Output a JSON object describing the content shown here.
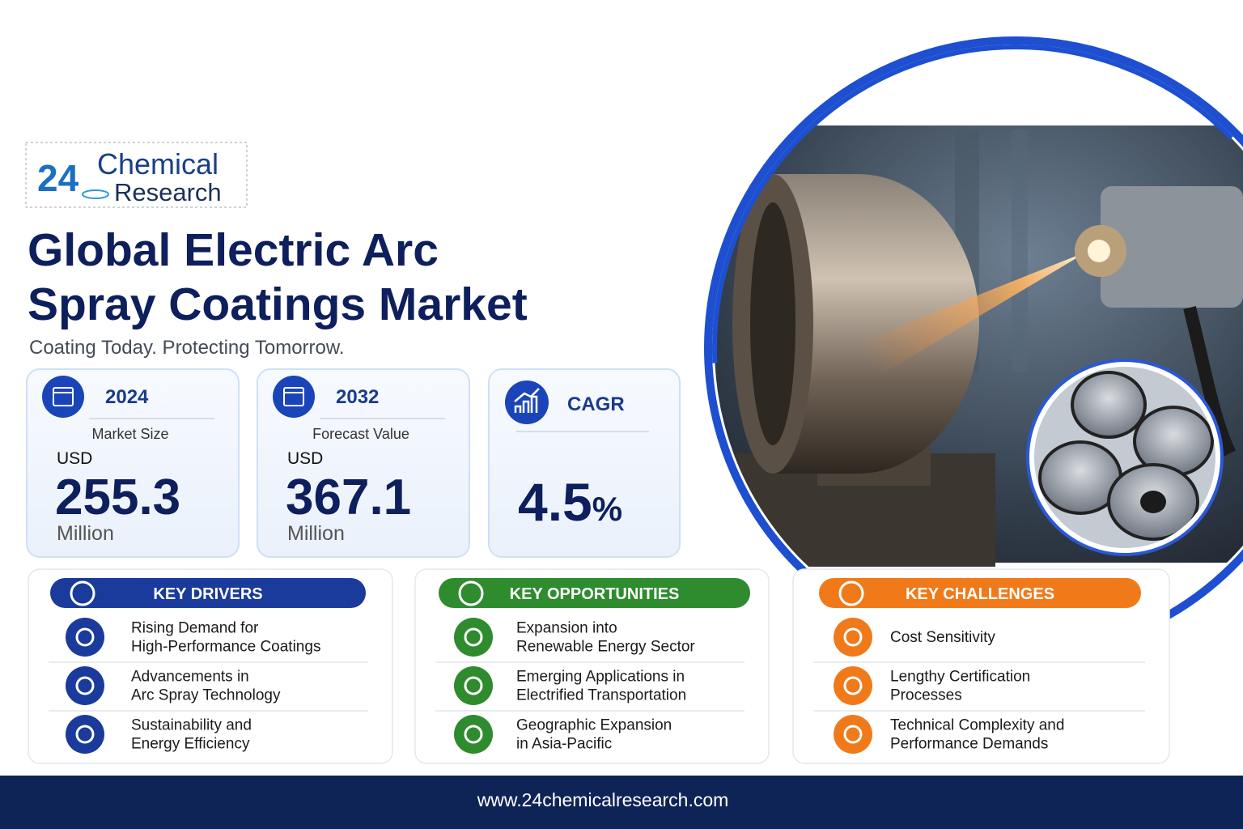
{
  "logo": {
    "number": "24",
    "line1": "Chemical",
    "line2": "Research"
  },
  "header": {
    "title_line1": "Global Electric Arc",
    "title_line2": "Spray Coatings Market",
    "tagline": "Coating Today. Protecting Tomorrow."
  },
  "stats": [
    {
      "year": "2024",
      "label": "Market Size",
      "currency": "USD",
      "value": "255.3",
      "unit": "Million"
    },
    {
      "year": "2032",
      "label": "Forecast Value",
      "currency": "USD",
      "value": "367.1",
      "unit": "Million"
    }
  ],
  "cagr": {
    "label": "CAGR",
    "value": "4.5",
    "unit": "%"
  },
  "sections": [
    {
      "title": "KEY DRIVERS",
      "items": [
        [
          "Rising Demand for",
          "High-Performance Coatings"
        ],
        [
          "Advancements in",
          "Arc Spray Technology"
        ],
        [
          "Sustainability and",
          "Energy Efficiency"
        ]
      ]
    },
    {
      "title": "KEY OPPORTUNITIES",
      "items": [
        [
          "Expansion into",
          "Renewable Energy Sector"
        ],
        [
          "Emerging Applications in",
          "Electrified Transportation"
        ],
        [
          "Geographic Expansion",
          "in Asia-Pacific"
        ]
      ]
    },
    {
      "title": "KEY CHALLENGES",
      "items": [
        [
          "Cost Sensitivity"
        ],
        [
          "Lengthy Certification",
          "Processes"
        ],
        [
          "Technical Complexity and",
          "Performance Demands"
        ]
      ]
    }
  ],
  "footer": {
    "url": "www.24chemicalresearch.com"
  }
}
